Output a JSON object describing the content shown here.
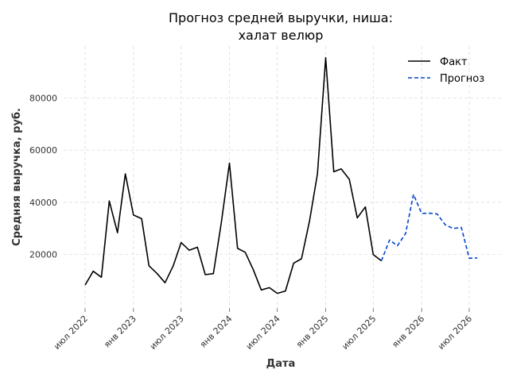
{
  "chart_data": {
    "type": "line",
    "title": [
      "Прогноз средней выручки, ниша:",
      "халат велюр"
    ],
    "xlabel": "Дата",
    "ylabel": "Средняя выручка, руб.",
    "ylim": [
      0,
      100000
    ],
    "yticks": [
      20000,
      40000,
      60000,
      80000
    ],
    "xticks": [
      "июл 2022",
      "янв 2023",
      "июл 2023",
      "янв 2024",
      "июл 2024",
      "янв 2025",
      "июл 2025",
      "янв 2026",
      "июл 2026"
    ],
    "xtick_dates": [
      "2022-07-01",
      "2023-01-01",
      "2023-07-01",
      "2024-01-01",
      "2024-07-01",
      "2025-01-01",
      "2025-07-01",
      "2026-01-01",
      "2026-07-01"
    ],
    "grid": true,
    "legend_position": "top-right",
    "series": [
      {
        "name": "Факт",
        "color": "#000000",
        "style": "solid",
        "x": [
          "2022-07-01",
          "2022-08-01",
          "2022-09-01",
          "2022-10-01",
          "2022-11-01",
          "2022-12-01",
          "2023-01-01",
          "2023-02-01",
          "2023-03-01",
          "2023-04-01",
          "2023-05-01",
          "2023-06-01",
          "2023-07-01",
          "2023-08-01",
          "2023-09-01",
          "2023-10-01",
          "2023-11-01",
          "2023-12-01",
          "2024-01-01",
          "2024-02-01",
          "2024-03-01",
          "2024-04-01",
          "2024-05-01",
          "2024-06-01",
          "2024-07-01",
          "2024-08-01",
          "2024-09-01",
          "2024-10-01",
          "2024-11-01",
          "2024-12-01",
          "2025-01-01",
          "2025-02-01",
          "2025-03-01",
          "2025-04-01",
          "2025-05-01",
          "2025-06-01",
          "2025-07-01",
          "2025-08-01"
        ],
        "y": [
          8200,
          13500,
          11200,
          40500,
          28300,
          50900,
          35100,
          33700,
          15600,
          12600,
          9100,
          15500,
          24500,
          21600,
          22700,
          12200,
          12600,
          32000,
          55000,
          22300,
          20800,
          14000,
          6300,
          7200,
          5000,
          5900,
          16600,
          18300,
          33000,
          51000,
          95500,
          51700,
          52800,
          48800,
          34000,
          38200,
          19900,
          17500
        ]
      },
      {
        "name": "Прогноз",
        "color": "#0044cc",
        "style": "dashed",
        "x": [
          "2025-08-01",
          "2025-09-01",
          "2025-10-01",
          "2025-11-01",
          "2025-12-01",
          "2026-01-01",
          "2026-02-01",
          "2026-03-01",
          "2026-04-01",
          "2026-05-01",
          "2026-06-01",
          "2026-07-01",
          "2026-08-01"
        ],
        "y": [
          17500,
          25500,
          23300,
          28000,
          43000,
          35700,
          35800,
          35500,
          31300,
          29900,
          30300,
          18500,
          18600
        ]
      }
    ]
  }
}
